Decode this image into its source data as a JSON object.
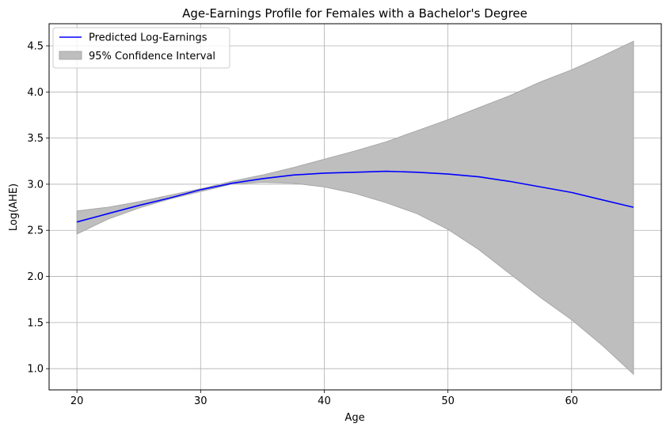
{
  "chart_data": {
    "type": "line",
    "title": "Age-Earnings Profile for Females with a Bachelor's Degree",
    "xlabel": "Age",
    "ylabel": "Log(AHE)",
    "xlim": [
      17.75,
      67.25
    ],
    "ylim": [
      0.77,
      4.74
    ],
    "xticks": [
      20,
      30,
      40,
      50,
      60
    ],
    "yticks": [
      1.0,
      1.5,
      2.0,
      2.5,
      3.0,
      3.5,
      4.0,
      4.5
    ],
    "grid": true,
    "legend_position": "top-left",
    "series": [
      {
        "name": "Predicted Log-Earnings",
        "kind": "line",
        "color": "#0000ff",
        "x": [
          20,
          22.5,
          25,
          27.5,
          30,
          32.5,
          35,
          37.5,
          40,
          42.5,
          45,
          47.5,
          50,
          52.5,
          55,
          57.5,
          60,
          62.5,
          65
        ],
        "y": [
          2.59,
          2.68,
          2.77,
          2.85,
          2.94,
          3.01,
          3.06,
          3.1,
          3.12,
          3.13,
          3.14,
          3.13,
          3.11,
          3.08,
          3.03,
          2.97,
          2.91,
          2.83,
          2.75
        ]
      },
      {
        "name": "95% Confidence Interval",
        "kind": "band",
        "color": "#bebebe",
        "edge_color": "#a8a8a8",
        "x": [
          20,
          22.5,
          25,
          27.5,
          30,
          32.5,
          35,
          37.5,
          40,
          42.5,
          45,
          47.5,
          50,
          52.5,
          55,
          57.5,
          60,
          62.5,
          65
        ],
        "lower": [
          2.46,
          2.62,
          2.74,
          2.84,
          2.92,
          3.0,
          3.02,
          3.01,
          2.97,
          2.9,
          2.8,
          2.68,
          2.51,
          2.29,
          2.03,
          1.77,
          1.53,
          1.25,
          0.94
        ],
        "upper": [
          2.71,
          2.75,
          2.81,
          2.88,
          2.95,
          3.03,
          3.1,
          3.18,
          3.27,
          3.36,
          3.46,
          3.58,
          3.7,
          3.83,
          3.96,
          4.11,
          4.24,
          4.39,
          4.55
        ]
      }
    ]
  }
}
